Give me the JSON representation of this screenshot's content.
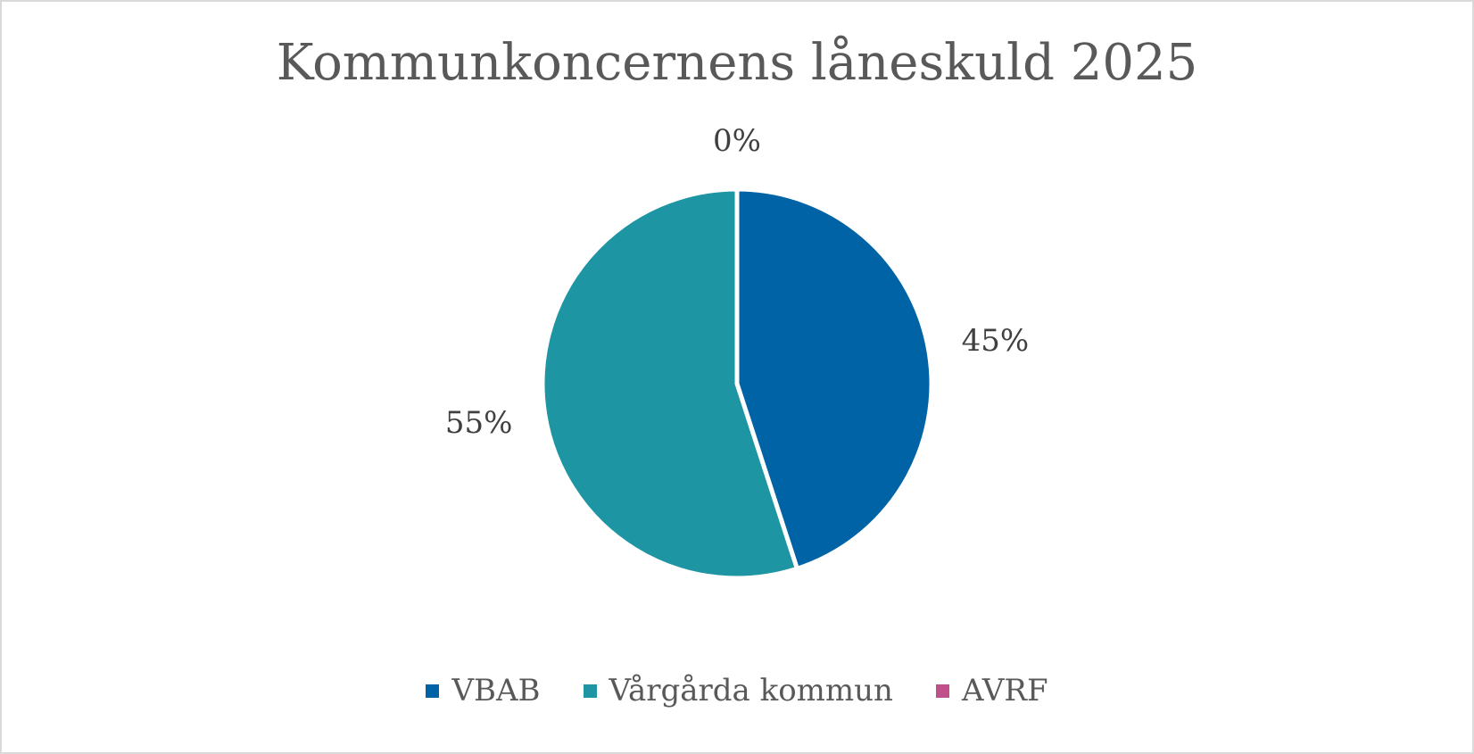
{
  "chart_data": {
    "type": "pie",
    "title": "Kommunkoncernens låneskuld 2025",
    "legend_position": "bottom",
    "slices": [
      {
        "name": "VBAB",
        "value": 45,
        "label": "45%",
        "color": "#0063a6"
      },
      {
        "name": "Vårgårda kommun",
        "value": 55,
        "label": "55%",
        "color": "#1e95a3"
      },
      {
        "name": "AVRF",
        "value": 0,
        "label": "0%",
        "color": "#c0508a"
      }
    ]
  }
}
